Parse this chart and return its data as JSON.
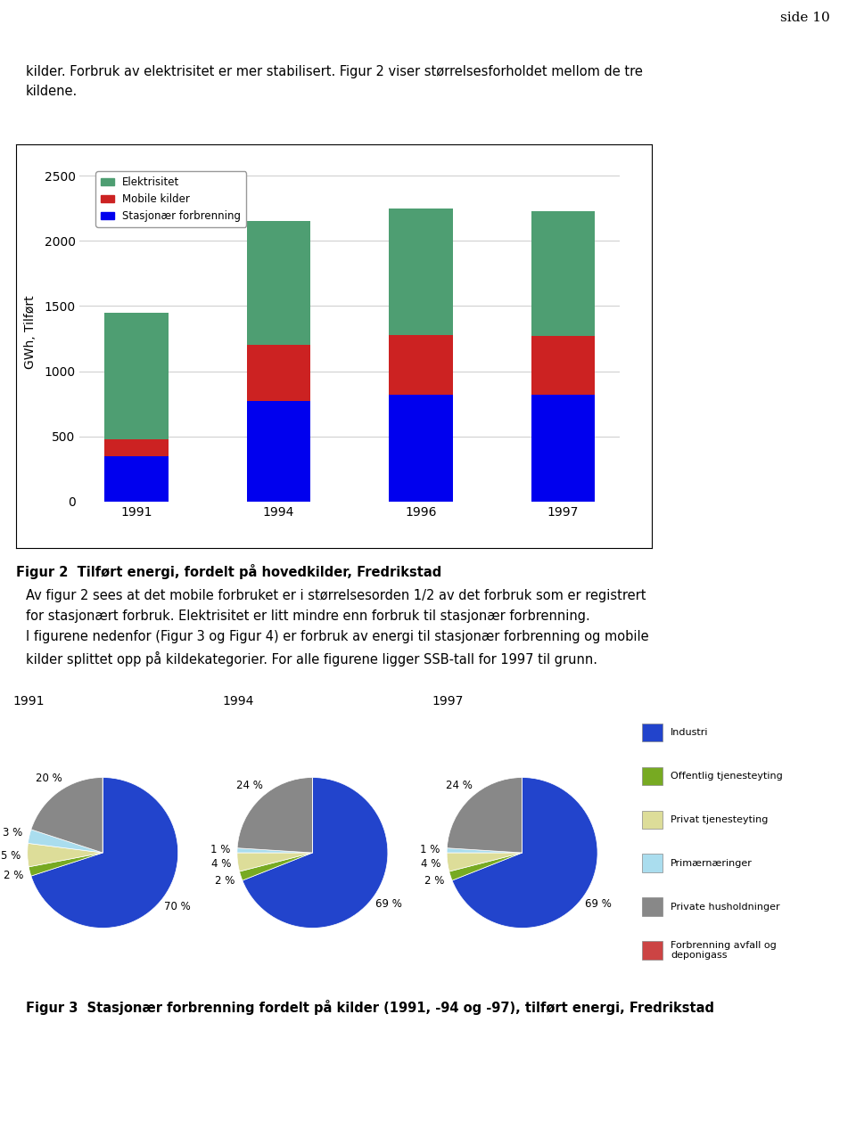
{
  "page_header": "side 10",
  "header_bar_color": "#b8b8b8",
  "intro_text": "kilder. Forbruk av elektrisitet er mer stabilisert. Figur 2 viser størrelsesforholdet mellom de tre\nkildene.",
  "bar_years": [
    "1991",
    "1994",
    "1996",
    "1997"
  ],
  "bar_stasjonar": [
    350,
    770,
    820,
    820
  ],
  "bar_mobile": [
    130,
    430,
    460,
    450
  ],
  "bar_elektrisitet": [
    970,
    950,
    970,
    955
  ],
  "bar_colors": {
    "elektrisitet": "#4e9e72",
    "mobile": "#cc2222",
    "stasjonar": "#0000ee"
  },
  "bar_ylabel": "GWh, Tilført",
  "bar_ylim": [
    0,
    2600
  ],
  "bar_yticks": [
    0,
    500,
    1000,
    1500,
    2000,
    2500
  ],
  "bar_legend": [
    "Elektrisitet",
    "Mobile kilder",
    "Stasjonær forbrenning"
  ],
  "bar_caption": "Figur 2  Tilført energi, fordelt på hovedkilder, Fredrikstad",
  "paragraph_text": "Av figur 2 sees at det mobile forbruket er i størrelsesorden 1/2 av det forbruk som er registrert\nfor stasjonært forbruk. Elektrisitet er litt mindre enn forbruk til stasjonær forbrenning.\nI figurene nedenfor (Figur 3 og Figur 4) er forbruk av energi til stasjonær forbrenning og mobile\nkilder splittet opp på kildekategorier. For alle figurene ligger SSB-tall for 1997 til grunn.",
  "pie_titles": [
    "1991",
    "1994",
    "1997"
  ],
  "pie_categories": [
    "Industri",
    "Offentlig tjenesteyting",
    "Privat tjenesteyting",
    "Primærnæringer",
    "Private husholdninger",
    "Forbrenning avfall og\ndeponigass"
  ],
  "pie_colors": [
    "#2244cc",
    "#77aa22",
    "#dddd99",
    "#aaddee",
    "#888888",
    "#cc4444"
  ],
  "pie_1991": [
    70,
    2,
    5,
    3,
    20,
    0
  ],
  "pie_1994": [
    69,
    2,
    4,
    1,
    24,
    0
  ],
  "pie_1997": [
    69,
    2,
    4,
    1,
    24,
    0
  ],
  "pie_caption": "Figur 3  Stasjonær forbrenning fordelt på kilder (1991, -94 og -97), tilført energi, Fredrikstad"
}
